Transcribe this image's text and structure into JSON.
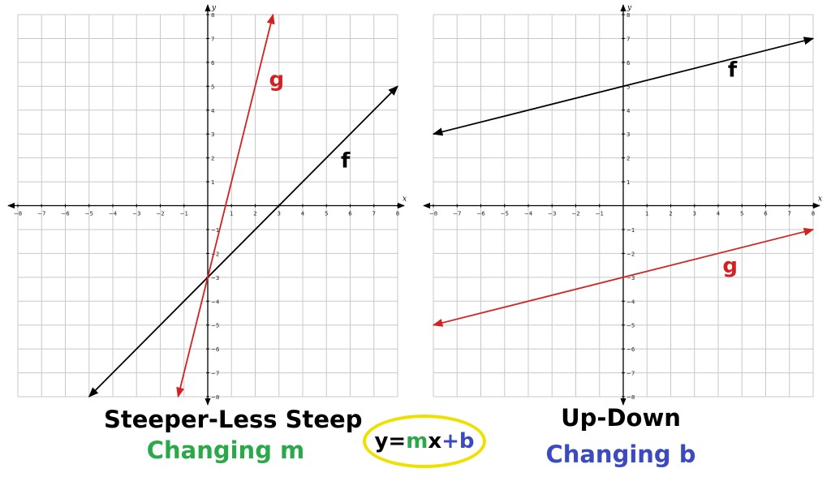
{
  "colors": {
    "f": "#000000",
    "g": "#d42020",
    "m": "#2aa84a",
    "b": "#3b4bbd",
    "ellipse": "#f0e000",
    "grid": "#c8c8c8"
  },
  "chart_data": [
    {
      "type": "line",
      "xlabel": "x",
      "ylabel": "y",
      "xlim": [
        -8,
        8
      ],
      "ylim": [
        -8,
        8
      ],
      "grid": true,
      "x_ticks": [
        -8,
        -7,
        -6,
        -5,
        -4,
        -3,
        -2,
        -1,
        1,
        2,
        3,
        4,
        5,
        6,
        7,
        8
      ],
      "y_ticks": [
        -8,
        -7,
        -6,
        -5,
        -4,
        -3,
        -2,
        -1,
        1,
        2,
        3,
        4,
        5,
        6,
        7,
        8
      ],
      "series": [
        {
          "name": "f",
          "color": "#000000",
          "x": [
            -5,
            8
          ],
          "y": [
            -8,
            5
          ]
        },
        {
          "name": "g",
          "color": "#d42020",
          "x": [
            -1.25,
            2.75
          ],
          "y": [
            -8,
            8
          ]
        }
      ],
      "annotations": [
        {
          "text": "f",
          "x": 5.8,
          "y": 1.6,
          "color": "#000000"
        },
        {
          "text": "g",
          "x": 2.9,
          "y": 5.0,
          "color": "#d42020"
        }
      ]
    },
    {
      "type": "line",
      "xlabel": "x",
      "ylabel": "y",
      "xlim": [
        -8,
        8
      ],
      "ylim": [
        -8,
        8
      ],
      "grid": true,
      "x_ticks": [
        -8,
        -7,
        -6,
        -5,
        -4,
        -3,
        -2,
        -1,
        1,
        2,
        3,
        4,
        5,
        6,
        7,
        8
      ],
      "y_ticks": [
        -8,
        -7,
        -6,
        -5,
        -4,
        -3,
        -2,
        -1,
        1,
        2,
        3,
        4,
        5,
        6,
        7,
        8
      ],
      "series": [
        {
          "name": "f",
          "color": "#000000",
          "x": [
            -8,
            8
          ],
          "y": [
            3,
            7
          ]
        },
        {
          "name": "g",
          "color": "#d42020",
          "x": [
            -8,
            8
          ],
          "y": [
            -5,
            -1
          ]
        }
      ],
      "annotations": [
        {
          "text": "f",
          "x": 4.6,
          "y": 5.4,
          "color": "#000000"
        },
        {
          "text": "g",
          "x": 4.5,
          "y": -2.8,
          "color": "#d42020"
        }
      ]
    }
  ],
  "captions": {
    "left_title": "Steeper-Less Steep",
    "left_subtitle": "Changing m",
    "right_title": "Up-Down",
    "right_subtitle": "Changing b"
  },
  "formula": {
    "prefix": "y=",
    "m": "m",
    "mid": "x",
    "b": "+b"
  }
}
